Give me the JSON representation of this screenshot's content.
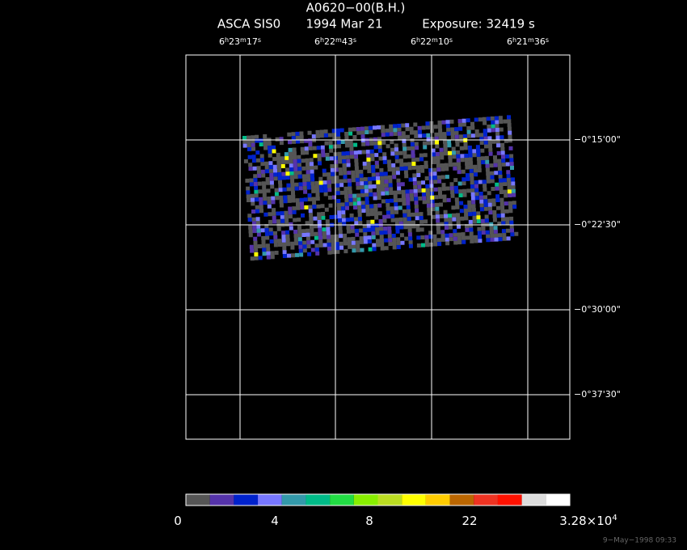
{
  "header": {
    "target": "A0620−00(B.H.)",
    "instrument": "ASCA SIS0",
    "date": "1994 Mar 21",
    "exposure": "Exposure: 32419 s"
  },
  "ra_labels": [
    [
      "6",
      "h",
      "23",
      "m",
      "17",
      "s"
    ],
    [
      "6",
      "h",
      "22",
      "m",
      "43",
      "s"
    ],
    [
      "6",
      "h",
      "22",
      "m",
      "10",
      "s"
    ],
    [
      "6",
      "h",
      "21",
      "m",
      "36",
      "s"
    ]
  ],
  "dec_labels": [
    "−0°15'00\"",
    "−0°22'30\"",
    "−0°30'00\"",
    "−0°37'30\""
  ],
  "colorbar": {
    "colors": [
      "#555555",
      "#5533aa",
      "#0022cc",
      "#7777ff",
      "#3399aa",
      "#00bb88",
      "#22dd44",
      "#88ee00",
      "#bbdd22",
      "#ffff00",
      "#ffcc00",
      "#bb6600",
      "#ee3322",
      "#ff1100",
      "#dddddd",
      "#ffffff"
    ],
    "labels": [
      [
        "0"
      ],
      [
        "4"
      ],
      [
        "8"
      ],
      [
        "22"
      ],
      [
        "3.28×10",
        "4"
      ]
    ]
  },
  "timestamp": "9−May−1998 09:33"
}
